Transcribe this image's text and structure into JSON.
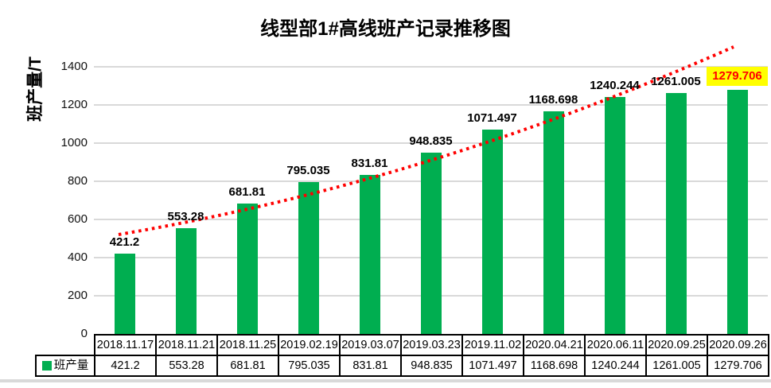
{
  "title": "线型部1#高线班产记录推移图",
  "y_axis": {
    "title": "班产量/T",
    "ticks": [
      "0",
      "200",
      "400",
      "600",
      "800",
      "1000",
      "1200",
      "1400"
    ],
    "max": 1400
  },
  "legend": {
    "label": "班产量"
  },
  "colors": {
    "bar": "#00AE50",
    "trend": "#FF0000",
    "highlight_bg": "#FFFF00",
    "highlight_text": "#FF0000",
    "gridline": "#D9D9D9"
  },
  "chart_data": {
    "type": "bar",
    "title": "线型部1#高线班产记录推移图",
    "xlabel": "",
    "ylabel": "班产量/T",
    "ylim": [
      0,
      1400
    ],
    "grid": true,
    "legend_position": "bottom-left-of-data-table",
    "categories": [
      "2018.11.17",
      "2018.11.21",
      "2018.11.25",
      "2019.02.19",
      "2019.03.07",
      "2019.03.23",
      "2019.11.02",
      "2020.04.21",
      "2020.06.11",
      "2020.09.25",
      "2020.09.26"
    ],
    "series": [
      {
        "name": "班产量",
        "type": "bar",
        "values": [
          421.2,
          553.28,
          681.81,
          795.035,
          831.81,
          948.835,
          1071.497,
          1168.698,
          1240.244,
          1261.005,
          1279.706
        ]
      }
    ],
    "value_labels": [
      "421.2",
      "553.28",
      "681.81",
      "795.035",
      "831.81",
      "948.835",
      "1071.497",
      "1168.698",
      "1240.244",
      "1261.005",
      "1279.706"
    ],
    "highlighted_index": 10,
    "data_table_rows": [
      "categories",
      "values"
    ],
    "trendline": {
      "style": "dotted",
      "color": "#FF0000",
      "shape": "rising curve from first bar, extending above 1400 past last bar"
    }
  }
}
